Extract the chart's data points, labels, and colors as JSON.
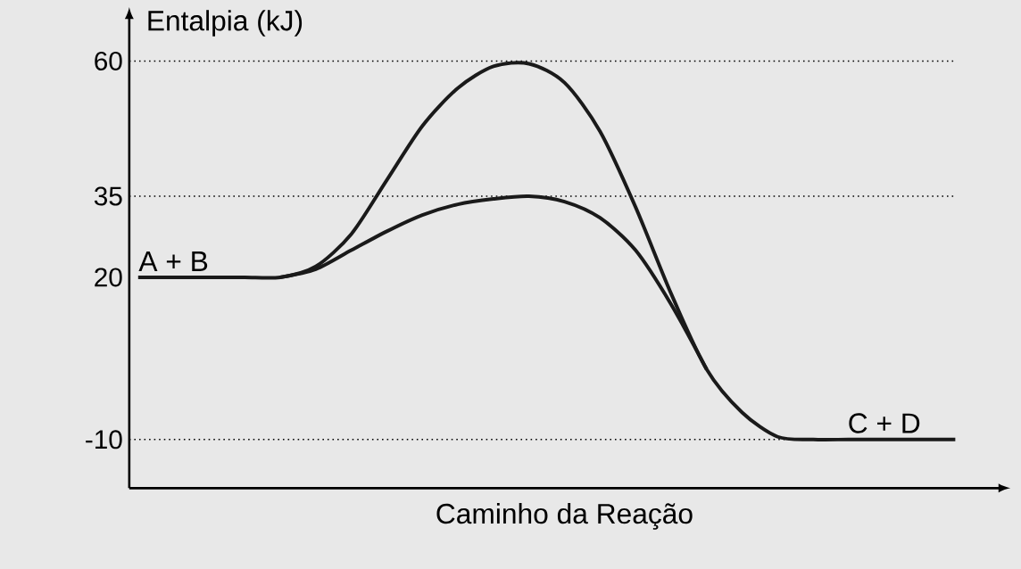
{
  "chart_data": {
    "type": "line",
    "xlabel": "Caminho da Reação",
    "ylabel": "Entalpia (kJ)",
    "categories": [
      null,
      null,
      null,
      null,
      null,
      null,
      null,
      null,
      null,
      null,
      null,
      null,
      null,
      null,
      null,
      null,
      null,
      null,
      null,
      null,
      null,
      null,
      null,
      null
    ],
    "series": [
      {
        "color": "#1a1a1a",
        "values": [
          20,
          20,
          20,
          20,
          20,
          22,
          28,
          38,
          48,
          55,
          59,
          59.5,
          56,
          47,
          33,
          17,
          3,
          -5,
          -9.5,
          -10,
          -10,
          -10,
          -10,
          -10
        ]
      },
      {
        "color": "#1a1a1a",
        "values": [
          null,
          null,
          null,
          null,
          20,
          21.5,
          25,
          28.5,
          31.5,
          33.5,
          34.5,
          35,
          34,
          31,
          25,
          15,
          3,
          null,
          null,
          null,
          null,
          null,
          null,
          null
        ]
      }
    ],
    "ylim": [
      -19,
      68
    ],
    "yticks": [
      -10,
      20,
      35,
      60
    ],
    "ref_lines": [
      {
        "axis": "y",
        "value": 60,
        "line_style": "dotted"
      },
      {
        "axis": "y",
        "value": 35,
        "line_style": "dotted"
      },
      {
        "axis": "y",
        "value": -10,
        "line_style": "dotted"
      }
    ],
    "annotations": [
      "A + B",
      "C + D"
    ],
    "grid": false,
    "marker": "none",
    "line_style": "solid"
  }
}
